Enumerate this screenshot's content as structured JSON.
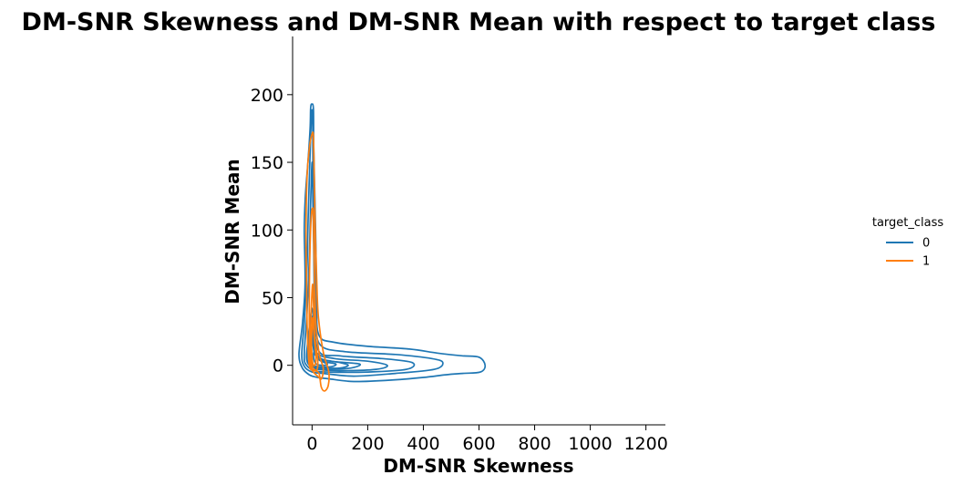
{
  "chart_data": {
    "type": "kde-contour",
    "title": "DM-SNR Skewness and DM-SNR Mean with respect to target class",
    "xlabel": "DM-SNR Skewness",
    "ylabel": "DM-SNR Mean",
    "xlim": [
      -70,
      1270
    ],
    "ylim": [
      -44,
      243
    ],
    "xticks": [
      0,
      200,
      400,
      600,
      800,
      1000,
      1200
    ],
    "yticks": [
      0,
      50,
      100,
      150,
      200
    ],
    "grid": false,
    "legend": {
      "title": "target_class",
      "placement": "right",
      "entries": [
        {
          "label": "0",
          "color": "#1f77b4"
        },
        {
          "label": "1",
          "color": "#ff7f0e"
        }
      ]
    },
    "series": [
      {
        "name": "0",
        "color": "#1f77b4",
        "contours": [
          [
            [
              -5,
              190
            ],
            [
              -1,
              193
            ],
            [
              5,
              189
            ],
            [
              6,
              160
            ],
            [
              10,
              125
            ],
            [
              14,
              85
            ],
            [
              16,
              45
            ],
            [
              25,
              22
            ],
            [
              80,
              17
            ],
            [
              200,
              14
            ],
            [
              350,
              12
            ],
            [
              450,
              9
            ],
            [
              540,
              7
            ],
            [
              600,
              6
            ],
            [
              622,
              0
            ],
            [
              605,
              -5
            ],
            [
              540,
              -6
            ],
            [
              480,
              -7
            ],
            [
              400,
              -9
            ],
            [
              280,
              -11
            ],
            [
              150,
              -12
            ],
            [
              60,
              -10
            ],
            [
              20,
              -9
            ],
            [
              -10,
              -7
            ],
            [
              -35,
              -2
            ],
            [
              -47,
              8
            ],
            [
              -35,
              30
            ],
            [
              -25,
              60
            ],
            [
              -28,
              100
            ],
            [
              -24,
              125
            ],
            [
              -15,
              150
            ],
            [
              -7,
              175
            ],
            [
              -5,
              190
            ]
          ],
          [
            [
              -2,
              185
            ],
            [
              2,
              184
            ],
            [
              3,
              150
            ],
            [
              6,
              110
            ],
            [
              9,
              70
            ],
            [
              12,
              35
            ],
            [
              30,
              15
            ],
            [
              120,
              10
            ],
            [
              300,
              8
            ],
            [
              430,
              5
            ],
            [
              470,
              2
            ],
            [
              440,
              -3
            ],
            [
              300,
              -6
            ],
            [
              150,
              -8
            ],
            [
              40,
              -6
            ],
            [
              0,
              -5
            ],
            [
              -27,
              -1
            ],
            [
              -37,
              8
            ],
            [
              -27,
              35
            ],
            [
              -18,
              75
            ],
            [
              -14,
              110
            ],
            [
              -8,
              150
            ],
            [
              -2,
              185
            ]
          ],
          [
            [
              0,
              150
            ],
            [
              3,
              120
            ],
            [
              6,
              85
            ],
            [
              9,
              50
            ],
            [
              20,
              12
            ],
            [
              100,
              7
            ],
            [
              250,
              5
            ],
            [
              360,
              2
            ],
            [
              340,
              -3
            ],
            [
              200,
              -5
            ],
            [
              60,
              -5
            ],
            [
              10,
              -4
            ],
            [
              -20,
              0
            ],
            [
              -28,
              8
            ],
            [
              -18,
              40
            ],
            [
              -10,
              80
            ],
            [
              -5,
              120
            ],
            [
              0,
              150
            ]
          ],
          [
            [
              0,
              42
            ],
            [
              7,
              30
            ],
            [
              15,
              10
            ],
            [
              80,
              5
            ],
            [
              200,
              3
            ],
            [
              270,
              0
            ],
            [
              230,
              -3
            ],
            [
              100,
              -4
            ],
            [
              20,
              -3
            ],
            [
              -10,
              0
            ],
            [
              -20,
              6
            ],
            [
              -14,
              20
            ],
            [
              -6,
              35
            ],
            [
              0,
              42
            ]
          ],
          [
            [
              0,
              36
            ],
            [
              6,
              20
            ],
            [
              20,
              7
            ],
            [
              70,
              3
            ],
            [
              170,
              1
            ],
            [
              140,
              -2
            ],
            [
              60,
              -3
            ],
            [
              10,
              -2
            ],
            [
              -12,
              2
            ],
            [
              -14,
              12
            ],
            [
              -6,
              28
            ],
            [
              0,
              36
            ]
          ],
          [
            [
              0,
              28
            ],
            [
              6,
              14
            ],
            [
              30,
              5
            ],
            [
              100,
              2
            ],
            [
              130,
              0
            ],
            [
              100,
              -2
            ],
            [
              40,
              -2
            ],
            [
              5,
              -1
            ],
            [
              -8,
              3
            ],
            [
              -10,
              12
            ],
            [
              -4,
              22
            ],
            [
              0,
              28
            ]
          ],
          [
            [
              2,
              18
            ],
            [
              10,
              8
            ],
            [
              40,
              3
            ],
            [
              85,
              1
            ],
            [
              70,
              -1
            ],
            [
              30,
              -1
            ],
            [
              5,
              0
            ],
            [
              -4,
              6
            ],
            [
              -2,
              14
            ],
            [
              2,
              18
            ]
          ],
          [
            [
              8,
              10
            ],
            [
              25,
              4
            ],
            [
              55,
              1
            ],
            [
              40,
              0
            ],
            [
              15,
              1
            ],
            [
              6,
              5
            ],
            [
              8,
              10
            ]
          ]
        ]
      },
      {
        "name": "1",
        "color": "#ff7f0e",
        "contours": [
          [
            [
              0,
              171
            ],
            [
              5,
              168
            ],
            [
              8,
              135
            ],
            [
              12,
              95
            ],
            [
              17,
              60
            ],
            [
              23,
              35
            ],
            [
              40,
              10
            ],
            [
              60,
              -5
            ],
            [
              58,
              -15
            ],
            [
              45,
              -19
            ],
            [
              33,
              -16
            ],
            [
              25,
              -6
            ],
            [
              10,
              -4
            ],
            [
              -8,
              -2
            ],
            [
              -14,
              10
            ],
            [
              -18,
              30
            ],
            [
              -20,
              60
            ],
            [
              -22,
              100
            ],
            [
              -18,
              140
            ],
            [
              -10,
              160
            ],
            [
              0,
              171
            ]
          ],
          [
            [
              1,
              116
            ],
            [
              4,
              112
            ],
            [
              7,
              85
            ],
            [
              10,
              55
            ],
            [
              14,
              30
            ],
            [
              26,
              8
            ],
            [
              40,
              -2
            ],
            [
              34,
              -10
            ],
            [
              20,
              -8
            ],
            [
              5,
              -5
            ],
            [
              -5,
              0
            ],
            [
              -9,
              15
            ],
            [
              -10,
              40
            ],
            [
              -9,
              70
            ],
            [
              -6,
              95
            ],
            [
              -3,
              110
            ],
            [
              1,
              116
            ]
          ],
          [
            [
              2,
              60
            ],
            [
              6,
              40
            ],
            [
              10,
              20
            ],
            [
              20,
              5
            ],
            [
              18,
              -3
            ],
            [
              8,
              -3
            ],
            [
              -3,
              2
            ],
            [
              -5,
              20
            ],
            [
              -3,
              40
            ],
            [
              2,
              60
            ]
          ],
          [
            [
              3,
              35
            ],
            [
              8,
              20
            ],
            [
              14,
              6
            ],
            [
              10,
              0
            ],
            [
              2,
              2
            ],
            [
              -2,
              15
            ],
            [
              0,
              28
            ],
            [
              3,
              35
            ]
          ]
        ]
      }
    ]
  }
}
